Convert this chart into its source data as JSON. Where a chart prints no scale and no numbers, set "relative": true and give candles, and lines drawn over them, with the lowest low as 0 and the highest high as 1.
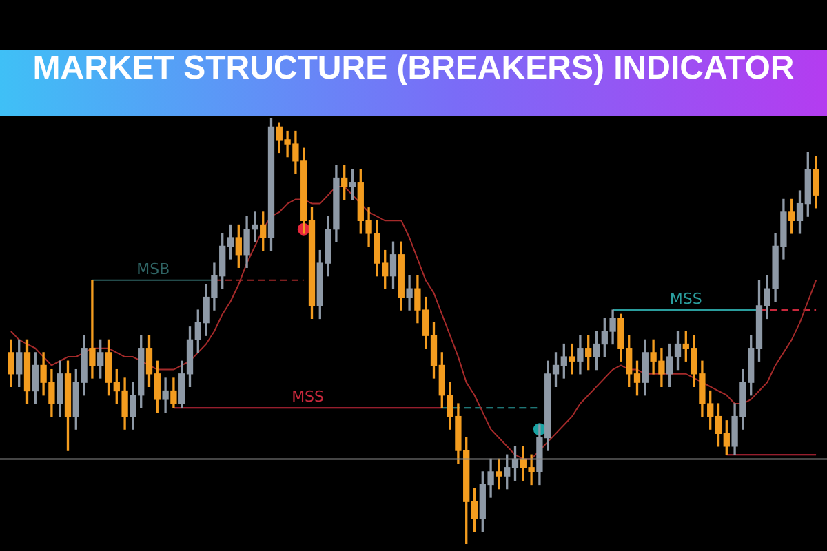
{
  "chart_data": {
    "type": "candlestick",
    "title": "MARKET STRUCTURE (BREAKERS) INDICATOR",
    "relative": true,
    "legend": false,
    "categories": [
      null,
      null,
      null,
      null,
      null,
      null,
      null,
      null,
      null,
      null,
      null,
      null,
      null,
      null,
      null,
      null,
      null,
      null,
      null,
      null,
      null,
      null,
      null,
      null,
      null,
      null,
      null,
      null,
      null,
      null,
      null,
      null,
      null,
      null,
      null,
      null,
      null,
      null,
      null,
      null,
      null,
      null,
      null,
      null,
      null,
      null,
      null,
      null,
      null,
      null,
      null,
      null,
      null,
      null,
      null,
      null,
      null,
      null,
      null,
      null,
      null,
      null,
      null,
      null,
      null,
      null,
      null,
      null,
      null,
      null,
      null,
      null,
      null,
      null,
      null,
      null,
      null,
      null,
      null,
      null,
      null,
      null,
      null,
      null,
      null,
      null,
      null,
      null,
      null,
      null,
      null,
      null,
      null,
      null,
      null,
      null,
      null,
      null,
      null,
      null
    ],
    "ohlc": [
      [
        0.45,
        0.48,
        0.37,
        0.4
      ],
      [
        0.4,
        0.48,
        0.37,
        0.45
      ],
      [
        0.45,
        0.48,
        0.33,
        0.36
      ],
      [
        0.36,
        0.45,
        0.33,
        0.42
      ],
      [
        0.42,
        0.45,
        0.35,
        0.38
      ],
      [
        0.38,
        0.41,
        0.3,
        0.33
      ],
      [
        0.33,
        0.43,
        0.3,
        0.4
      ],
      [
        0.4,
        0.43,
        0.22,
        0.3
      ],
      [
        0.3,
        0.41,
        0.27,
        0.38
      ],
      [
        0.38,
        0.49,
        0.35,
        0.46
      ],
      [
        0.46,
        0.62,
        0.39,
        0.42
      ],
      [
        0.42,
        0.48,
        0.39,
        0.45
      ],
      [
        0.45,
        0.48,
        0.35,
        0.38
      ],
      [
        0.38,
        0.41,
        0.33,
        0.36
      ],
      [
        0.36,
        0.39,
        0.27,
        0.3
      ],
      [
        0.3,
        0.38,
        0.27,
        0.35
      ],
      [
        0.35,
        0.49,
        0.32,
        0.46
      ],
      [
        0.46,
        0.49,
        0.37,
        0.4
      ],
      [
        0.4,
        0.43,
        0.31,
        0.34
      ],
      [
        0.34,
        0.39,
        0.31,
        0.36
      ],
      [
        0.36,
        0.39,
        0.32,
        0.33
      ],
      [
        0.33,
        0.43,
        0.32,
        0.4
      ],
      [
        0.4,
        0.51,
        0.37,
        0.48
      ],
      [
        0.48,
        0.55,
        0.45,
        0.52
      ],
      [
        0.52,
        0.61,
        0.49,
        0.58
      ],
      [
        0.58,
        0.66,
        0.55,
        0.63
      ],
      [
        0.63,
        0.73,
        0.6,
        0.7
      ],
      [
        0.7,
        0.75,
        0.67,
        0.72
      ],
      [
        0.72,
        0.75,
        0.65,
        0.68
      ],
      [
        0.68,
        0.77,
        0.65,
        0.74
      ],
      [
        0.74,
        0.78,
        0.71,
        0.75
      ],
      [
        0.75,
        0.78,
        0.69,
        0.72
      ],
      [
        0.72,
        1,
        0.69,
        0.98
      ],
      [
        0.98,
        0.99,
        0.92,
        0.95
      ],
      [
        0.95,
        0.97,
        0.91,
        0.94
      ],
      [
        0.94,
        0.97,
        0.87,
        0.9
      ],
      [
        0.9,
        0.93,
        0.73,
        0.76
      ],
      [
        0.76,
        0.79,
        0.53,
        0.56
      ],
      [
        0.56,
        0.69,
        0.53,
        0.66
      ],
      [
        0.66,
        0.77,
        0.63,
        0.74
      ],
      [
        0.74,
        0.89,
        0.71,
        0.86
      ],
      [
        0.86,
        0.89,
        0.81,
        0.84
      ],
      [
        0.84,
        0.88,
        0.81,
        0.85
      ],
      [
        0.85,
        0.88,
        0.73,
        0.76
      ],
      [
        0.76,
        0.79,
        0.7,
        0.73
      ],
      [
        0.73,
        0.76,
        0.63,
        0.66
      ],
      [
        0.66,
        0.69,
        0.6,
        0.63
      ],
      [
        0.63,
        0.71,
        0.6,
        0.68
      ],
      [
        0.68,
        0.71,
        0.55,
        0.58
      ],
      [
        0.58,
        0.63,
        0.55,
        0.6
      ],
      [
        0.6,
        0.63,
        0.52,
        0.55
      ],
      [
        0.55,
        0.58,
        0.46,
        0.49
      ],
      [
        0.49,
        0.52,
        0.39,
        0.42
      ],
      [
        0.42,
        0.45,
        0.32,
        0.35
      ],
      [
        0.35,
        0.38,
        0.27,
        0.3
      ],
      [
        0.3,
        0.33,
        0.19,
        0.22
      ],
      [
        0.22,
        0.25,
        0,
        0.1
      ],
      [
        0.1,
        0.13,
        0.03,
        0.06
      ],
      [
        0.06,
        0.17,
        0.03,
        0.14
      ],
      [
        0.14,
        0.2,
        0.11,
        0.17
      ],
      [
        0.17,
        0.2,
        0.13,
        0.16
      ],
      [
        0.16,
        0.21,
        0.13,
        0.18
      ],
      [
        0.18,
        0.23,
        0.15,
        0.2
      ],
      [
        0.2,
        0.23,
        0.15,
        0.18
      ],
      [
        0.18,
        0.21,
        0.14,
        0.17
      ],
      [
        0.17,
        0.28,
        0.14,
        0.25
      ],
      [
        0.25,
        0.43,
        0.22,
        0.4
      ],
      [
        0.4,
        0.45,
        0.37,
        0.42
      ],
      [
        0.42,
        0.47,
        0.39,
        0.44
      ],
      [
        0.44,
        0.47,
        0.4,
        0.43
      ],
      [
        0.43,
        0.49,
        0.4,
        0.46
      ],
      [
        0.46,
        0.49,
        0.41,
        0.44
      ],
      [
        0.44,
        0.5,
        0.41,
        0.47
      ],
      [
        0.47,
        0.53,
        0.44,
        0.5
      ],
      [
        0.5,
        0.55,
        0.47,
        0.53
      ],
      [
        0.53,
        0.54,
        0.43,
        0.46
      ],
      [
        0.46,
        0.49,
        0.37,
        0.4
      ],
      [
        0.4,
        0.43,
        0.35,
        0.38
      ],
      [
        0.38,
        0.48,
        0.35,
        0.45
      ],
      [
        0.45,
        0.48,
        0.4,
        0.43
      ],
      [
        0.43,
        0.46,
        0.37,
        0.4
      ],
      [
        0.4,
        0.47,
        0.37,
        0.44
      ],
      [
        0.44,
        0.5,
        0.41,
        0.47
      ],
      [
        0.47,
        0.5,
        0.43,
        0.46
      ],
      [
        0.46,
        0.49,
        0.37,
        0.4
      ],
      [
        0.4,
        0.43,
        0.3,
        0.33
      ],
      [
        0.33,
        0.36,
        0.27,
        0.3
      ],
      [
        0.3,
        0.33,
        0.23,
        0.26
      ],
      [
        0.26,
        0.29,
        0.21,
        0.23
      ],
      [
        0.23,
        0.33,
        0.21,
        0.3
      ],
      [
        0.3,
        0.41,
        0.27,
        0.38
      ],
      [
        0.38,
        0.49,
        0.35,
        0.46
      ],
      [
        0.46,
        0.62,
        0.43,
        0.56
      ],
      [
        0.56,
        0.63,
        0.53,
        0.6
      ],
      [
        0.6,
        0.73,
        0.57,
        0.7
      ],
      [
        0.7,
        0.81,
        0.67,
        0.78
      ],
      [
        0.78,
        0.81,
        0.73,
        0.76
      ],
      [
        0.76,
        0.83,
        0.73,
        0.8
      ],
      [
        0.8,
        0.92,
        0.77,
        0.88
      ],
      [
        0.88,
        0.91,
        0.79,
        0.82
      ]
    ],
    "colors": [
      "#f39c1f",
      "#8e99a6",
      "#f39c1f",
      "#8e99a6",
      "#f39c1f",
      "#f39c1f",
      "#8e99a6",
      "#f39c1f",
      "#8e99a6",
      "#8e99a6",
      "#f39c1f",
      "#8e99a6",
      "#f39c1f",
      "#f39c1f",
      "#f39c1f",
      "#8e99a6",
      "#8e99a6",
      "#f39c1f",
      "#f39c1f",
      "#8e99a6",
      "#f39c1f",
      "#8e99a6",
      "#8e99a6",
      "#8e99a6",
      "#8e99a6",
      "#8e99a6",
      "#8e99a6",
      "#8e99a6",
      "#f39c1f",
      "#8e99a6",
      "#8e99a6",
      "#f39c1f",
      "#8e99a6",
      "#f39c1f",
      "#f39c1f",
      "#f39c1f",
      "#f39c1f",
      "#f39c1f",
      "#8e99a6",
      "#8e99a6",
      "#8e99a6",
      "#f39c1f",
      "#8e99a6",
      "#f39c1f",
      "#f39c1f",
      "#f39c1f",
      "#f39c1f",
      "#8e99a6",
      "#f39c1f",
      "#8e99a6",
      "#f39c1f",
      "#f39c1f",
      "#f39c1f",
      "#f39c1f",
      "#f39c1f",
      "#f39c1f",
      "#f39c1f",
      "#f39c1f",
      "#8e99a6",
      "#8e99a6",
      "#f39c1f",
      "#8e99a6",
      "#8e99a6",
      "#f39c1f",
      "#f39c1f",
      "#8e99a6",
      "#8e99a6",
      "#8e99a6",
      "#8e99a6",
      "#f39c1f",
      "#8e99a6",
      "#f39c1f",
      "#8e99a6",
      "#8e99a6",
      "#8e99a6",
      "#f39c1f",
      "#f39c1f",
      "#f39c1f",
      "#8e99a6",
      "#f39c1f",
      "#f39c1f",
      "#8e99a6",
      "#8e99a6",
      "#f39c1f",
      "#f39c1f",
      "#f39c1f",
      "#f39c1f",
      "#f39c1f",
      "#f39c1f",
      "#8e99a6",
      "#8e99a6",
      "#8e99a6",
      "#8e99a6",
      "#8e99a6",
      "#8e99a6",
      "#8e99a6",
      "#f39c1f",
      "#8e99a6",
      "#8e99a6",
      "#f39c1f"
    ],
    "series": [
      {
        "type": "line",
        "color": "#a52a2a",
        "values": [
          0.5,
          0.48,
          0.47,
          0.46,
          0.44,
          0.42,
          0.43,
          0.44,
          0.44,
          0.45,
          0.46,
          0.46,
          0.46,
          0.45,
          0.44,
          0.44,
          0.43,
          0.42,
          0.41,
          0.41,
          0.41,
          0.42,
          0.43,
          0.45,
          0.47,
          0.5,
          0.54,
          0.57,
          0.61,
          0.66,
          0.7,
          0.74,
          0.77,
          0.78,
          0.8,
          0.81,
          0.81,
          0.8,
          0.8,
          0.82,
          0.84,
          0.84,
          0.82,
          0.8,
          0.78,
          0.77,
          0.76,
          0.76,
          0.76,
          0.72,
          0.67,
          0.62,
          0.59,
          0.54,
          0.49,
          0.44,
          0.38,
          0.35,
          0.31,
          0.27,
          0.25,
          0.23,
          0.21,
          0.2,
          0.2,
          0.22,
          0.24,
          0.26,
          0.28,
          0.3,
          0.33,
          0.35,
          0.37,
          0.39,
          0.41,
          0.42,
          0.41,
          0.41,
          0.4,
          0.4,
          0.4,
          0.4,
          0.4,
          0.4,
          0.39,
          0.38,
          0.37,
          0.36,
          0.35,
          0.33,
          0.33,
          0.34,
          0.36,
          0.38,
          0.42,
          0.45,
          0.48,
          0.52,
          0.57,
          0.62
        ]
      },
      {
        "type": "line",
        "name": "MSB",
        "color": "#2f6464",
        "values": [
          null,
          null,
          null,
          null,
          null,
          null,
          null,
          null,
          null,
          null,
          0.62,
          0.62,
          0.62,
          0.62,
          0.62,
          0.62,
          0.62,
          0.62,
          0.62,
          0.62,
          0.62,
          0.62,
          0.62,
          0.62,
          0.62,
          0.62,
          null,
          null,
          null,
          null,
          null,
          null,
          null,
          null,
          null,
          null,
          null,
          null,
          null,
          null,
          null,
          null,
          null,
          null,
          null,
          null,
          null,
          null,
          null,
          null,
          null,
          null,
          null,
          null,
          null,
          null,
          null,
          null,
          null,
          null,
          null,
          null,
          null,
          null,
          null,
          null,
          null,
          null,
          null,
          null,
          null,
          null,
          null,
          null,
          null,
          null,
          null,
          null,
          null,
          null,
          null,
          null,
          null,
          null,
          null,
          null,
          null,
          null,
          null,
          null,
          null,
          null,
          null,
          null,
          null,
          null,
          null,
          null,
          null,
          null
        ]
      },
      {
        "type": "line",
        "color": "#a52a2a",
        "line_style": "dashed",
        "values": [
          null,
          null,
          null,
          null,
          null,
          null,
          null,
          null,
          null,
          null,
          null,
          null,
          null,
          null,
          null,
          null,
          null,
          null,
          null,
          null,
          null,
          null,
          null,
          null,
          null,
          0.62,
          0.62,
          0.62,
          0.62,
          0.62,
          0.62,
          0.62,
          0.62,
          0.62,
          0.62,
          0.62,
          0.62,
          null,
          null,
          null,
          null,
          null,
          null,
          null,
          null,
          null,
          null,
          null,
          null,
          null,
          null,
          null,
          null,
          null,
          null,
          null,
          null,
          null,
          null,
          null,
          null,
          null,
          null,
          null,
          null,
          null,
          null,
          null,
          null,
          null,
          null,
          null,
          null,
          null,
          null,
          null,
          null,
          null,
          null,
          null,
          null,
          null,
          null,
          null,
          null,
          null,
          null,
          null,
          null,
          null,
          null,
          null,
          null,
          null,
          null,
          null,
          null,
          null,
          null,
          null
        ]
      },
      {
        "type": "line",
        "name": "MSS",
        "color": "#c8283c",
        "values": [
          null,
          null,
          null,
          null,
          null,
          null,
          null,
          null,
          null,
          null,
          null,
          null,
          null,
          null,
          null,
          null,
          null,
          null,
          null,
          null,
          0.32,
          0.32,
          0.32,
          0.32,
          0.32,
          0.32,
          0.32,
          0.32,
          0.32,
          0.32,
          0.32,
          0.32,
          0.32,
          0.32,
          0.32,
          0.32,
          0.32,
          0.32,
          0.32,
          0.32,
          0.32,
          0.32,
          0.32,
          0.32,
          0.32,
          0.32,
          0.32,
          0.32,
          0.32,
          0.32,
          0.32,
          0.32,
          0.32,
          0.32,
          null,
          null,
          null,
          null,
          null,
          null,
          null,
          null,
          null,
          null,
          null,
          null,
          null,
          null,
          null,
          null,
          null,
          null,
          null,
          null,
          null,
          null,
          null,
          null,
          null,
          null,
          null,
          null,
          null,
          null,
          null,
          null,
          null,
          null,
          null,
          null,
          null,
          null,
          null,
          null,
          null,
          null,
          null,
          null,
          null,
          null
        ]
      },
      {
        "type": "line",
        "color": "#2a9d9d",
        "line_style": "dashed",
        "values": [
          null,
          null,
          null,
          null,
          null,
          null,
          null,
          null,
          null,
          null,
          null,
          null,
          null,
          null,
          null,
          null,
          null,
          null,
          null,
          null,
          null,
          null,
          null,
          null,
          null,
          null,
          null,
          null,
          null,
          null,
          null,
          null,
          null,
          null,
          null,
          null,
          null,
          null,
          null,
          null,
          null,
          null,
          null,
          null,
          null,
          null,
          null,
          null,
          null,
          null,
          null,
          null,
          null,
          0.32,
          0.32,
          0.32,
          0.32,
          0.32,
          0.32,
          0.32,
          0.32,
          0.32,
          0.32,
          0.32,
          0.32,
          0.32,
          null,
          null,
          null,
          null,
          null,
          null,
          null,
          null,
          null,
          null,
          null,
          null,
          null,
          null,
          null,
          null,
          null,
          null,
          null,
          null,
          null,
          null,
          null,
          null,
          null,
          null,
          null,
          null,
          null,
          null,
          null,
          null,
          null,
          null
        ]
      },
      {
        "type": "line",
        "name": "MSS",
        "color": "#2a9d9d",
        "values": [
          null,
          null,
          null,
          null,
          null,
          null,
          null,
          null,
          null,
          null,
          null,
          null,
          null,
          null,
          null,
          null,
          null,
          null,
          null,
          null,
          null,
          null,
          null,
          null,
          null,
          null,
          null,
          null,
          null,
          null,
          null,
          null,
          null,
          null,
          null,
          null,
          null,
          null,
          null,
          null,
          null,
          null,
          null,
          null,
          null,
          null,
          null,
          null,
          null,
          null,
          null,
          null,
          null,
          null,
          null,
          null,
          null,
          null,
          null,
          null,
          null,
          null,
          null,
          null,
          null,
          null,
          null,
          null,
          null,
          null,
          null,
          null,
          null,
          null,
          0.55,
          0.55,
          0.55,
          0.55,
          0.55,
          0.55,
          0.55,
          0.55,
          0.55,
          0.55,
          0.55,
          0.55,
          0.55,
          0.55,
          0.55,
          0.55,
          0.55,
          0.55,
          0.55,
          null,
          null,
          null,
          null,
          null,
          null,
          null
        ]
      },
      {
        "type": "line",
        "color": "#c8283c",
        "line_style": "dashed",
        "values": [
          null,
          null,
          null,
          null,
          null,
          null,
          null,
          null,
          null,
          null,
          null,
          null,
          null,
          null,
          null,
          null,
          null,
          null,
          null,
          null,
          null,
          null,
          null,
          null,
          null,
          null,
          null,
          null,
          null,
          null,
          null,
          null,
          null,
          null,
          null,
          null,
          null,
          null,
          null,
          null,
          null,
          null,
          null,
          null,
          null,
          null,
          null,
          null,
          null,
          null,
          null,
          null,
          null,
          null,
          null,
          null,
          null,
          null,
          null,
          null,
          null,
          null,
          null,
          null,
          null,
          null,
          null,
          null,
          null,
          null,
          null,
          null,
          null,
          null,
          null,
          null,
          null,
          null,
          null,
          null,
          null,
          null,
          null,
          null,
          null,
          null,
          null,
          null,
          null,
          null,
          null,
          null,
          0.55,
          0.55,
          0.55,
          0.55,
          0.55,
          0.55,
          0.55,
          0.55
        ]
      },
      {
        "type": "line",
        "color": "#c8283c",
        "values": [
          null,
          null,
          null,
          null,
          null,
          null,
          null,
          null,
          null,
          null,
          null,
          null,
          null,
          null,
          null,
          null,
          null,
          null,
          null,
          null,
          null,
          null,
          null,
          null,
          null,
          null,
          null,
          null,
          null,
          null,
          null,
          null,
          null,
          null,
          null,
          null,
          null,
          null,
          null,
          null,
          null,
          null,
          null,
          null,
          null,
          null,
          null,
          null,
          null,
          null,
          null,
          null,
          null,
          null,
          null,
          null,
          null,
          null,
          null,
          null,
          null,
          null,
          null,
          null,
          null,
          null,
          null,
          null,
          null,
          null,
          null,
          null,
          null,
          null,
          null,
          null,
          null,
          null,
          null,
          null,
          null,
          null,
          null,
          null,
          null,
          null,
          null,
          null,
          0.21,
          0.21,
          0.21,
          0.21,
          0.21,
          0.21,
          0.21,
          0.21,
          0.21,
          0.21,
          0.21,
          0.21
        ]
      },
      {
        "type": "scatter",
        "color": "#e8283c",
        "values": [
          null,
          null,
          null,
          null,
          null,
          null,
          null,
          null,
          null,
          null,
          null,
          null,
          null,
          null,
          null,
          null,
          null,
          null,
          null,
          null,
          null,
          null,
          null,
          null,
          null,
          null,
          null,
          null,
          null,
          null,
          null,
          null,
          null,
          null,
          null,
          null,
          0.74,
          null,
          null,
          null,
          null,
          null,
          null,
          null,
          null,
          null,
          null,
          null,
          null,
          null,
          null,
          null,
          null,
          null,
          null,
          null,
          null,
          null,
          null,
          null,
          null,
          null,
          null,
          null,
          null,
          null,
          null,
          null,
          null,
          null,
          null,
          null,
          null,
          null,
          null,
          null,
          null,
          null,
          null,
          null,
          null,
          null,
          null,
          null,
          null,
          null,
          null,
          null,
          null,
          null,
          null,
          null,
          null,
          null,
          null,
          null,
          null,
          null,
          null,
          null
        ]
      },
      {
        "type": "scatter",
        "color": "#1aa3a3",
        "values": [
          null,
          null,
          null,
          null,
          null,
          null,
          null,
          null,
          null,
          null,
          null,
          null,
          null,
          null,
          null,
          null,
          null,
          null,
          null,
          null,
          null,
          null,
          null,
          null,
          null,
          null,
          null,
          null,
          null,
          null,
          null,
          null,
          null,
          null,
          null,
          null,
          null,
          null,
          null,
          null,
          null,
          null,
          null,
          null,
          null,
          null,
          null,
          null,
          null,
          null,
          null,
          null,
          null,
          null,
          null,
          null,
          null,
          null,
          null,
          null,
          null,
          null,
          null,
          null,
          null,
          0.27,
          null,
          null,
          null,
          null,
          null,
          null,
          null,
          null,
          null,
          null,
          null,
          null,
          null,
          null,
          null,
          null,
          null,
          null,
          null,
          null,
          null,
          null,
          null,
          null,
          null,
          null,
          null,
          null,
          null,
          null,
          null,
          null,
          null,
          null
        ]
      }
    ],
    "ref_lines": [
      {
        "axis": "y",
        "value": 0.2,
        "color": "#8a8a8a"
      }
    ]
  }
}
